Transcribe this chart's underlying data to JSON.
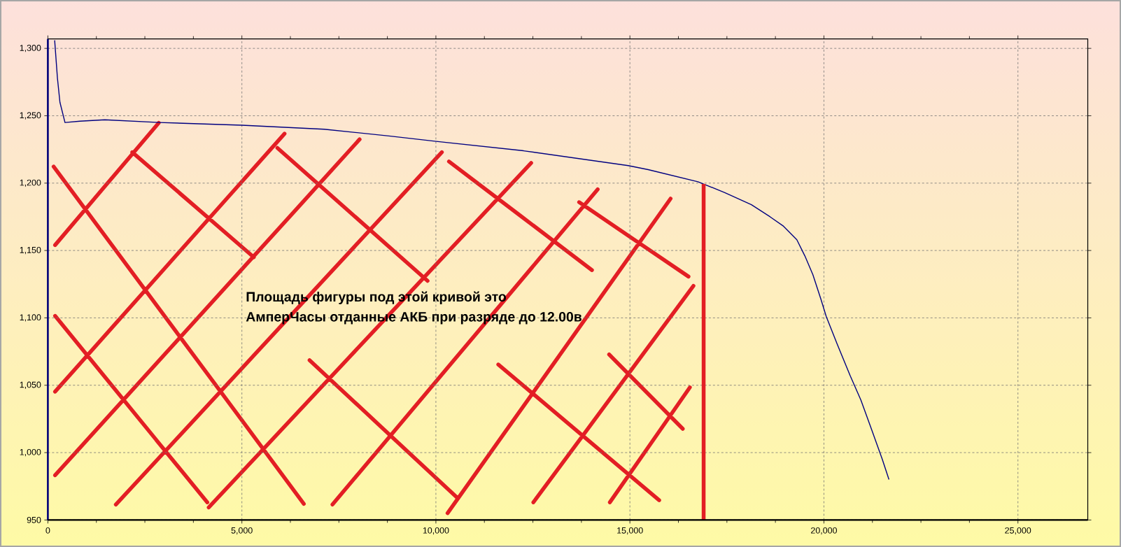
{
  "chart_data": {
    "type": "line",
    "color": "#000080",
    "x": [
      175,
      246,
      311,
      441,
      826,
      1468,
      2881,
      5000,
      7120,
      8790,
      10011,
      12259,
      14957,
      15471,
      16755,
      17444,
      18131,
      18613,
      18959,
      19302,
      19509,
      19716,
      19921,
      20060,
      20335,
      20678,
      20953,
      21230,
      21505,
      21676
    ],
    "values": [
      1306,
      1278,
      1260,
      1245,
      1246,
      1247,
      1245,
      1243,
      1240,
      1235,
      1231,
      1224,
      1213,
      1210,
      1201,
      1193,
      1184,
      1175,
      1168,
      1158,
      1146,
      1132,
      1114,
      1101,
      1081,
      1057,
      1039,
      1017,
      995,
      980
    ],
    "xlim": [
      0,
      26800
    ],
    "ylim": [
      950,
      1307
    ],
    "xticks": [
      0,
      {
        "value": 5000,
        "label": "5,000"
      },
      {
        "value": 10000,
        "label": "10,000"
      },
      {
        "value": 15000,
        "label": "15,000"
      },
      {
        "value": 20000,
        "label": "20,000"
      },
      {
        "value": 25000,
        "label": "25,000"
      }
    ],
    "yticks": [
      950,
      {
        "value": 1000,
        "label": "1,000"
      },
      {
        "value": 1050,
        "label": "1,050"
      },
      {
        "value": 1100,
        "label": "1,100"
      },
      {
        "value": 1150,
        "label": "1,150"
      },
      {
        "value": 1200,
        "label": "1,200"
      },
      {
        "value": 1250,
        "label": "1,250"
      },
      {
        "value": 1300,
        "label": "1,300"
      }
    ],
    "grid": true,
    "ref_lines": [
      {
        "axis": "x",
        "value": 16900,
        "color": "#e31e24"
      }
    ],
    "annotations": [
      "Площадь фигуры под этой кривой это",
      "АмперЧасы отданные АКБ при разряде до 12.00в"
    ]
  }
}
